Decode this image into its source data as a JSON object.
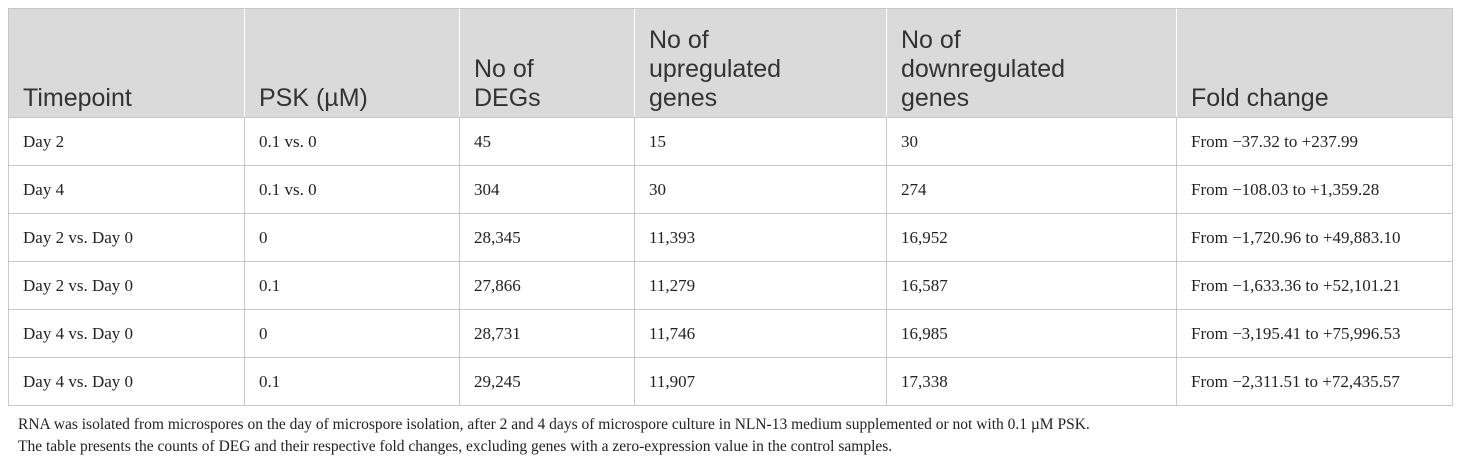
{
  "table": {
    "headers": [
      "Timepoint",
      "PSK (µM)",
      "No of DEGs",
      "No of upregulated genes",
      "No of downregulated genes",
      "Fold change"
    ],
    "rows": [
      [
        "Day 2",
        "0.1 vs. 0",
        "45",
        "15",
        "30",
        "From −37.32 to +237.99"
      ],
      [
        "Day 4",
        "0.1 vs. 0",
        "304",
        "30",
        "274",
        "From −108.03 to +1,359.28"
      ],
      [
        "Day 2 vs. Day 0",
        "0",
        "28,345",
        "11,393",
        "16,952",
        "From −1,720.96 to +49,883.10"
      ],
      [
        "Day 2 vs. Day 0",
        "0.1",
        "27,866",
        "11,279",
        "16,587",
        "From −1,633.36 to +52,101.21"
      ],
      [
        "Day 4 vs. Day 0",
        "0",
        "28,731",
        "11,746",
        "16,985",
        "From −3,195.41 to +75,996.53"
      ],
      [
        "Day 4 vs. Day 0",
        "0.1",
        "29,245",
        "11,907",
        "17,338",
        "From −2,311.51 to +72,435.57"
      ]
    ]
  },
  "caption": {
    "line1": "RNA was isolated from microspores on the day of microspore isolation, after 2 and 4 days of microspore culture in NLN-13 medium supplemented or not with 0.1 µM PSK.",
    "line2": "The table presents the counts of DEG and their respective fold changes, excluding genes with a zero-expression value in the control samples."
  }
}
